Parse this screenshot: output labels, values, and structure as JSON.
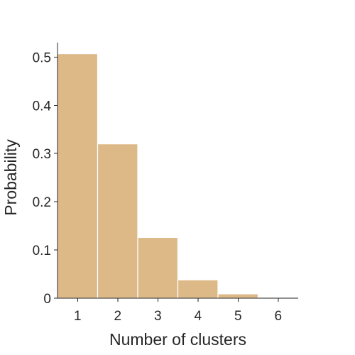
{
  "chart_data": {
    "type": "bar",
    "categories": [
      "1",
      "2",
      "3",
      "4",
      "5",
      "6"
    ],
    "x": [
      1,
      2,
      3,
      4,
      5,
      6
    ],
    "values": [
      0.507,
      0.32,
      0.126,
      0.038,
      0.009,
      0.002
    ],
    "title": "",
    "xlabel": "Number of clusters",
    "ylabel": "Probability",
    "xlim": [
      0.5,
      6.5
    ],
    "ylim": [
      0,
      0.53
    ],
    "yticks": [
      0,
      0.1,
      0.2,
      0.3,
      0.4,
      0.5
    ],
    "ytick_labels": [
      "0",
      "0.1",
      "0.2",
      "0.3",
      "0.4",
      "0.5"
    ],
    "grid": false,
    "legend": "none",
    "bar_color": "#ddb988"
  }
}
